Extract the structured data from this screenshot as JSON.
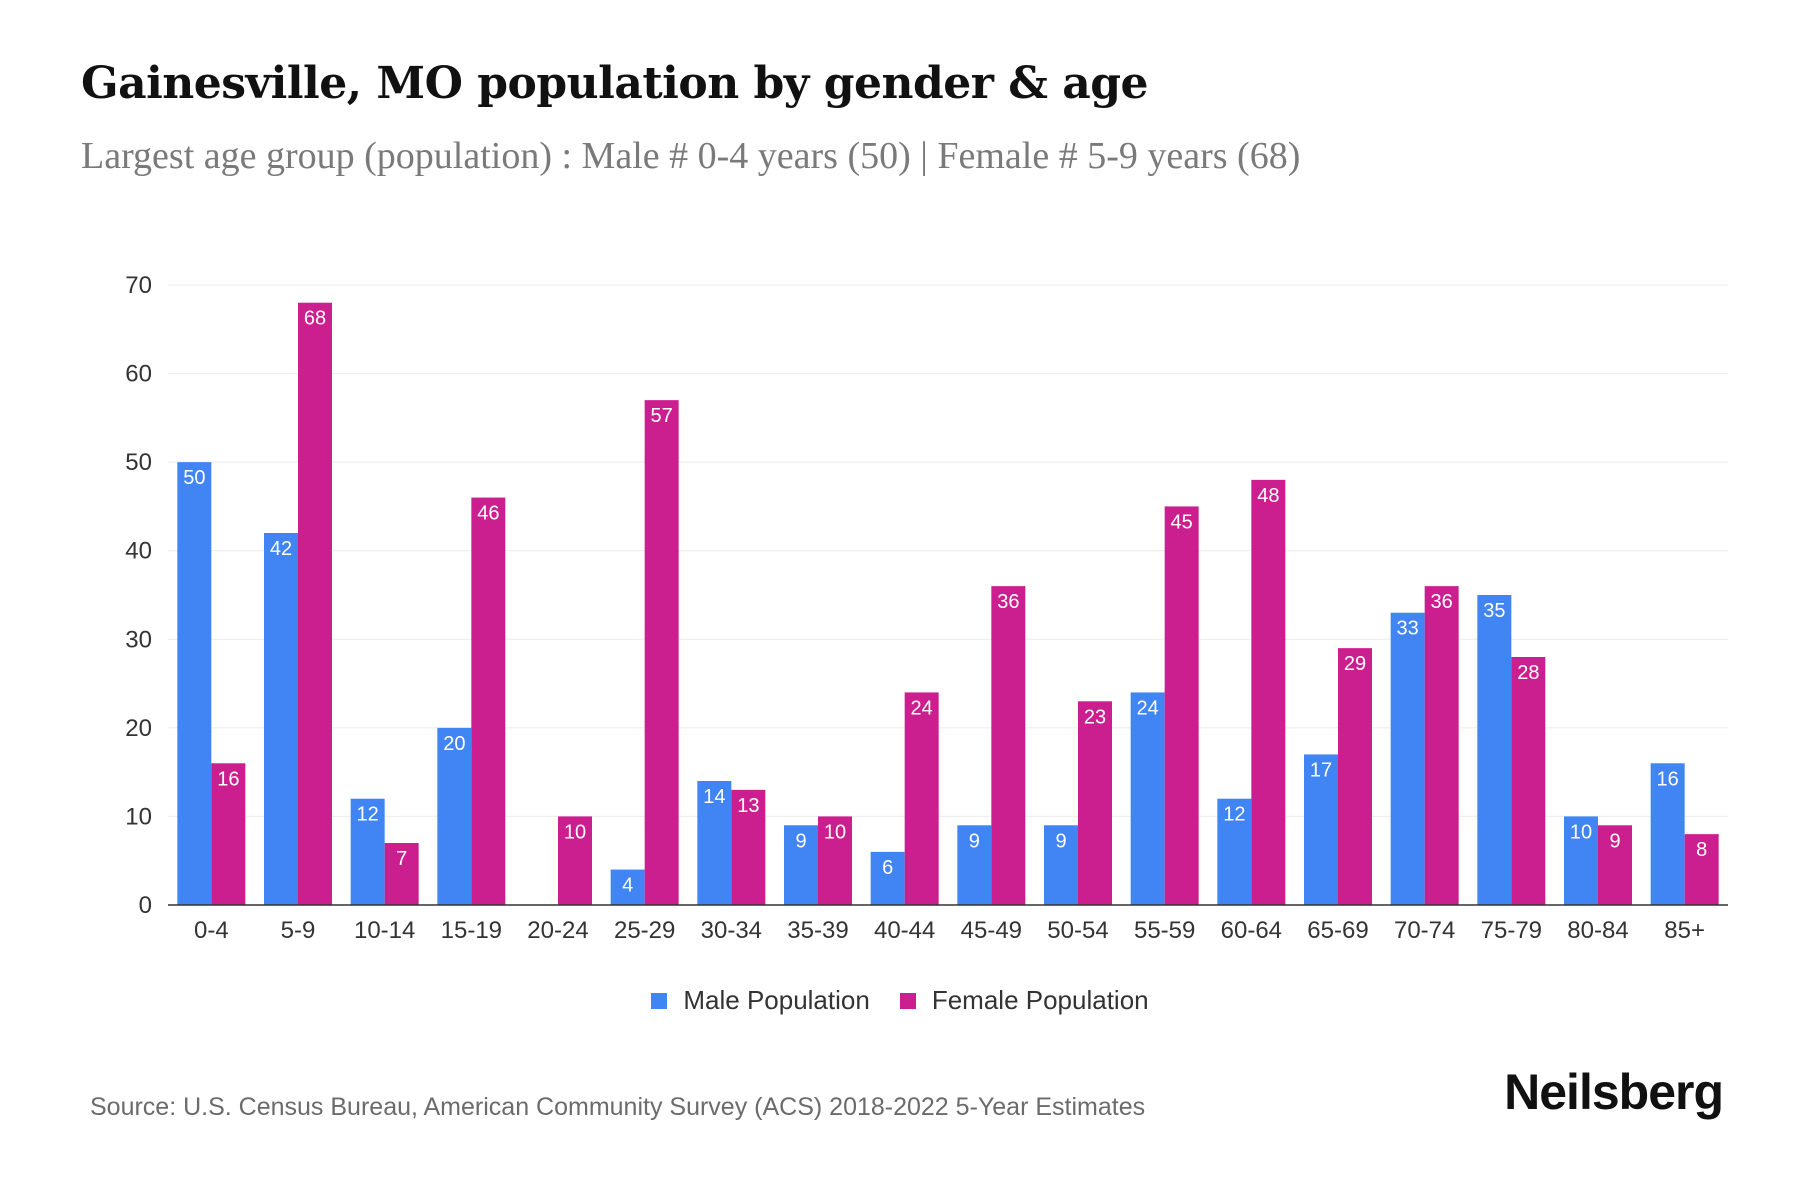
{
  "title": "Gainesville, MO population by gender & age",
  "subtitle": "Largest age group (population) : Male # 0-4 years (50) | Female # 5-9 years (68)",
  "source": "Source: U.S. Census Bureau, American Community Survey (ACS) 2018-2022 5-Year Estimates",
  "brand": "Neilsberg",
  "colors": {
    "male": "#4185f4",
    "female": "#cc1f8f"
  },
  "chart_data": {
    "type": "bar",
    "categories": [
      "0-4",
      "5-9",
      "10-14",
      "15-19",
      "20-24",
      "25-29",
      "30-34",
      "35-39",
      "40-44",
      "45-49",
      "50-54",
      "55-59",
      "60-64",
      "65-69",
      "70-74",
      "75-79",
      "80-84",
      "85+"
    ],
    "series": [
      {
        "name": "Male Population",
        "values": [
          50,
          42,
          12,
          20,
          0,
          4,
          14,
          9,
          6,
          9,
          9,
          24,
          12,
          17,
          33,
          35,
          10,
          16
        ]
      },
      {
        "name": "Female Population",
        "values": [
          16,
          68,
          7,
          46,
          10,
          57,
          13,
          10,
          24,
          36,
          23,
          45,
          48,
          29,
          36,
          28,
          9,
          8
        ]
      }
    ],
    "ylim": [
      0,
      70
    ],
    "yticks": [
      0,
      10,
      20,
      30,
      40,
      50,
      60,
      70
    ],
    "grid": true,
    "legend": "bottom-center"
  }
}
